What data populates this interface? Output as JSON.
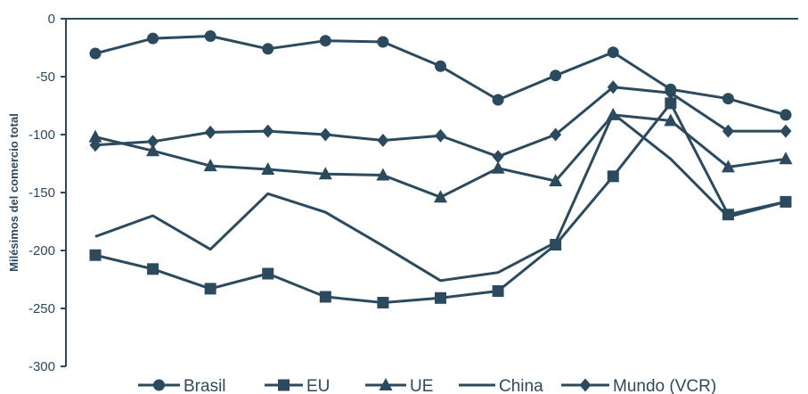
{
  "chart_data": {
    "type": "line",
    "title": "",
    "xlabel": "",
    "ylabel": "Milésimos del comercio total",
    "ylim": [
      -300,
      0
    ],
    "yticks": [
      0,
      -50,
      -100,
      -150,
      -200,
      -250,
      -300
    ],
    "x": [
      1,
      2,
      3,
      4,
      5,
      6,
      7,
      8,
      9,
      10,
      11,
      12,
      13
    ],
    "grid": false,
    "legend_position": "bottom",
    "colors": {
      "line": "#2b4a5e",
      "text": "#2b4a5e"
    },
    "series": [
      {
        "name": "Brasil",
        "marker": "circle",
        "values": [
          -30,
          -17,
          -15,
          -26,
          -19,
          -20,
          -41,
          -70,
          -49,
          -29,
          -61,
          -69,
          -83
        ]
      },
      {
        "name": "EU",
        "marker": "square",
        "values": [
          -204,
          -216,
          -233,
          -220,
          -240,
          -245,
          -241,
          -235,
          -195,
          -136,
          -73,
          -169,
          -158
        ]
      },
      {
        "name": "UE",
        "marker": "triangle",
        "values": [
          -102,
          -114,
          -127,
          -130,
          -134,
          -135,
          -154,
          -129,
          -140,
          -83,
          -88,
          -128,
          -121
        ]
      },
      {
        "name": "China",
        "marker": "none",
        "values": [
          -188,
          -170,
          -199,
          -151,
          -167,
          -196,
          -226,
          -219,
          -193,
          -82,
          -121,
          -171,
          -158
        ]
      },
      {
        "name": "Mundo (VCR)",
        "marker": "diamond",
        "values": [
          -109,
          -106,
          -98,
          -97,
          -100,
          -105,
          -101,
          -119,
          -100,
          -59,
          -64,
          -97,
          -97
        ]
      }
    ]
  }
}
